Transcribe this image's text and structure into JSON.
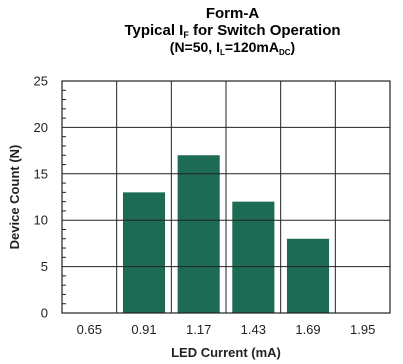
{
  "chart_data": {
    "type": "bar",
    "title_line1": "Form-A",
    "title_line2": {
      "prefix": "Typical I",
      "sub": "F",
      "suffix": " for Switch Operation"
    },
    "title_line3": {
      "p1": "(N=50, I",
      "s1": "L",
      "p2": "=120mA",
      "s2": "DC",
      "p3": ")"
    },
    "xlabel": "LED Current (mA)",
    "ylabel": "Device Count (N)",
    "categories": [
      "0.65",
      "0.91",
      "1.17",
      "1.43",
      "1.69",
      "1.95"
    ],
    "values": [
      0,
      13,
      17,
      12,
      8,
      0
    ],
    "yticks": [
      "0",
      "5",
      "10",
      "15",
      "20",
      "25"
    ],
    "ylim": [
      0,
      25
    ],
    "grid": true,
    "bar_color": "#1d6b55",
    "grid_color": "#222222"
  }
}
